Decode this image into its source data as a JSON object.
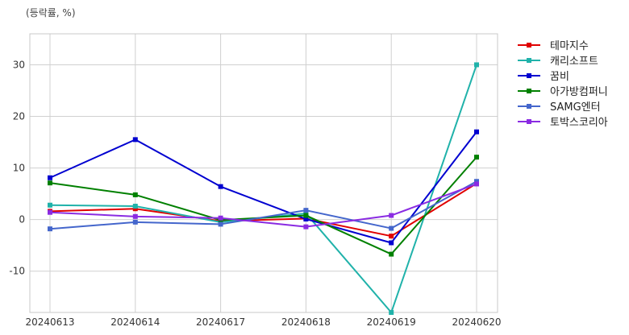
{
  "chart_data": {
    "type": "line",
    "unit_label": "(등락률, %)",
    "categories": [
      "20240613",
      "20240614",
      "20240617",
      "20240618",
      "20240619",
      "20240620"
    ],
    "ylim": [
      -18,
      36
    ],
    "yticks": [
      -10,
      0,
      10,
      20,
      30
    ],
    "grid": true,
    "legend_position": "right",
    "series": [
      {
        "name": "테마지수",
        "color": "#e00000",
        "values": [
          1.6,
          2.1,
          -0.3,
          0.2,
          -3.2,
          7.0
        ]
      },
      {
        "name": "캐리소프트",
        "color": "#20b2aa",
        "values": [
          2.8,
          2.6,
          -0.5,
          1.2,
          -18.0,
          30.0
        ]
      },
      {
        "name": "꿈비",
        "color": "#0000d0",
        "values": [
          8.1,
          15.5,
          6.4,
          0.1,
          -4.5,
          17.0
        ]
      },
      {
        "name": "아가방컴퍼니",
        "color": "#008000",
        "values": [
          7.1,
          4.8,
          -0.1,
          0.8,
          -6.7,
          12.1
        ]
      },
      {
        "name": "SAMG엔터",
        "color": "#4466cc",
        "values": [
          -1.8,
          -0.5,
          -0.9,
          1.8,
          -1.7,
          7.4
        ]
      },
      {
        "name": "토박스코리아",
        "color": "#8a2be2",
        "values": [
          1.4,
          0.6,
          0.3,
          -1.4,
          0.8,
          6.9
        ]
      }
    ]
  }
}
